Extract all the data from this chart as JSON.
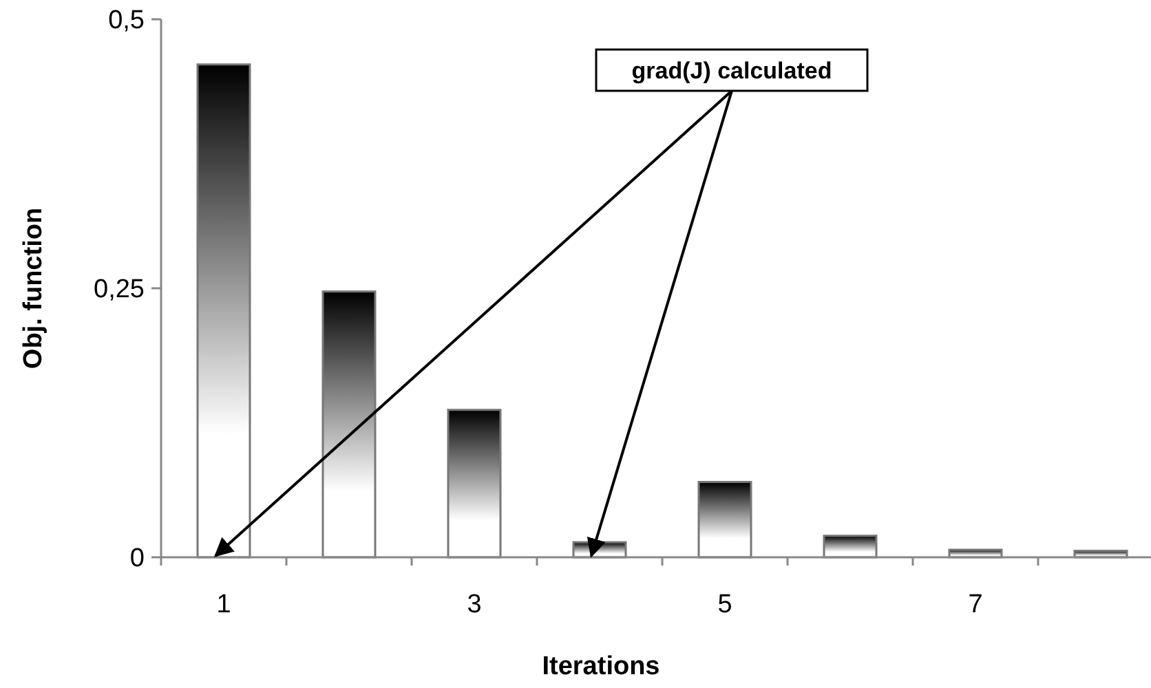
{
  "chart_data": {
    "type": "bar",
    "xlabel": "Iterations",
    "ylabel": "Obj. function",
    "categories": [
      "1",
      null,
      "3",
      null,
      "5",
      null,
      "7",
      null
    ],
    "values": [
      0.458,
      0.247,
      0.137,
      0.014,
      0.07,
      0.02,
      0.007,
      0.006
    ],
    "color": "#777777",
    "ylim": [
      0,
      0.5
    ],
    "yticks": [
      {
        "value": 0,
        "label": "0"
      },
      {
        "value": 0.25,
        "label": "0,25"
      },
      {
        "value": 0.5,
        "label": "0,5"
      }
    ],
    "annotations": [
      "grad(J) calculated"
    ]
  }
}
